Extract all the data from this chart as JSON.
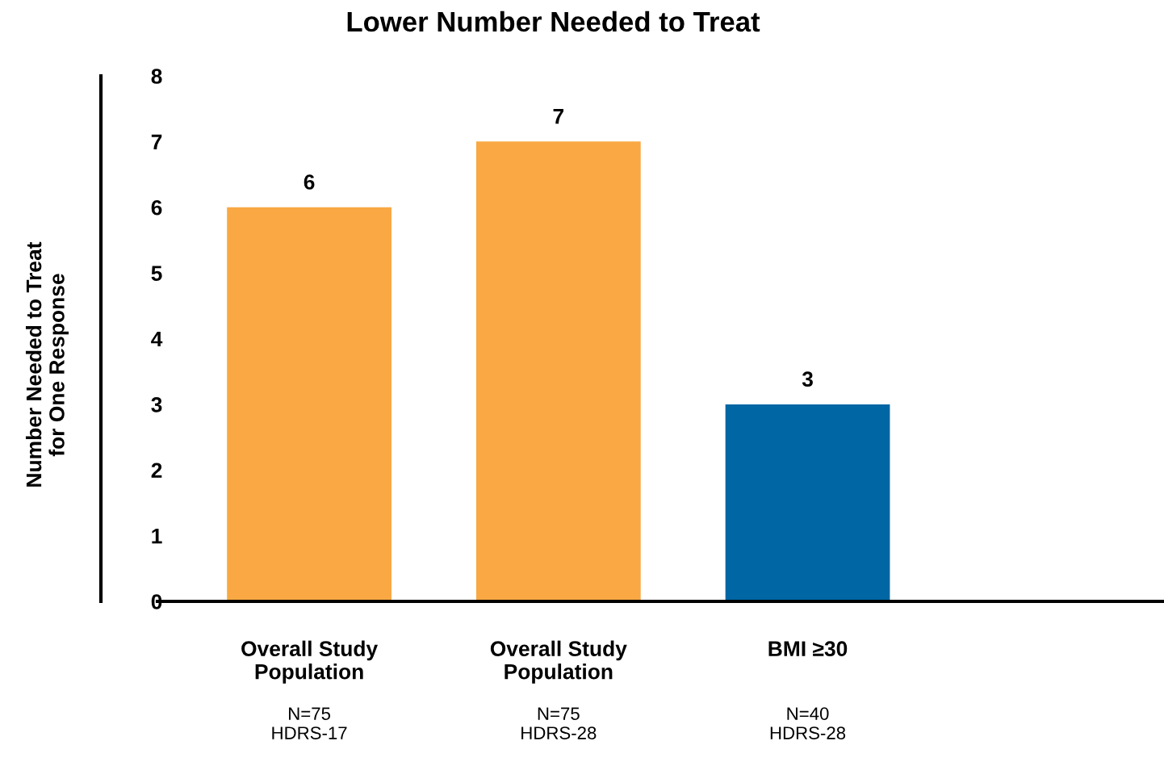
{
  "chart_data": {
    "type": "bar",
    "title": "Lower Number Needed to Treat",
    "ylabel": "Number Needed to Treat\nfor One Response",
    "categories": [
      "Overall Study\nPopulation",
      "Overall Study\nPopulation",
      "BMI ≥30"
    ],
    "values": [
      6,
      7,
      3
    ],
    "colors": [
      "#f9a843",
      "#f9a843",
      "#0066a4"
    ],
    "ylim": [
      0,
      8
    ],
    "yticks": [
      0,
      1,
      2,
      3,
      4,
      5,
      6,
      7,
      8
    ],
    "data_labels": true,
    "grid": false,
    "annotations": [
      "N=75\nHDRS-17",
      "N=75\nHDRS-28",
      "N=40\nHDRS-28"
    ]
  }
}
